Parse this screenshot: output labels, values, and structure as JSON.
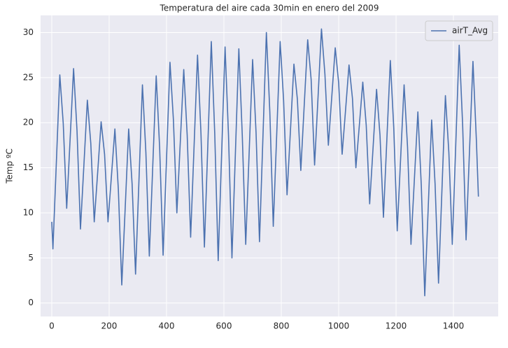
{
  "chart_data": {
    "type": "line",
    "title": "Temperatura del aire cada 30min en enero del 2009",
    "y_label": "Temp ºC",
    "x": [
      0,
      4,
      16,
      28,
      40,
      52,
      64,
      76,
      88,
      100,
      112,
      124,
      136,
      148,
      160,
      172,
      184,
      196,
      208,
      220,
      232,
      244,
      256,
      268,
      280,
      292,
      304,
      316,
      328,
      340,
      352,
      364,
      376,
      388,
      400,
      412,
      424,
      436,
      448,
      460,
      472,
      484,
      496,
      508,
      520,
      532,
      544,
      556,
      568,
      580,
      592,
      604,
      616,
      628,
      640,
      652,
      664,
      676,
      688,
      700,
      712,
      724,
      736,
      748,
      760,
      772,
      784,
      796,
      808,
      820,
      832,
      844,
      856,
      868,
      880,
      892,
      904,
      916,
      928,
      940,
      952,
      964,
      976,
      988,
      1000,
      1012,
      1024,
      1036,
      1048,
      1060,
      1072,
      1084,
      1096,
      1108,
      1120,
      1132,
      1144,
      1156,
      1168,
      1180,
      1192,
      1204,
      1216,
      1228,
      1240,
      1252,
      1264,
      1276,
      1288,
      1300,
      1312,
      1324,
      1336,
      1348,
      1360,
      1372,
      1384,
      1396,
      1408,
      1420,
      1432,
      1444,
      1456,
      1468,
      1480,
      1487
    ],
    "series": [
      {
        "name": "airT_Avg",
        "color": "#4c72b0",
        "values": [
          9,
          6,
          15.6,
          25.3,
          19.9,
          10.5,
          18.2,
          26,
          19.1,
          8.2,
          15.3,
          22.5,
          17.7,
          9,
          14.5,
          20.1,
          16.5,
          9,
          14.1,
          19.3,
          12.6,
          2,
          10.6,
          19.3,
          13.2,
          3.2,
          13.7,
          24.2,
          16.7,
          5.2,
          15.2,
          25.2,
          17.2,
          5.3,
          16,
          26.7,
          20.3,
          10,
          17.9,
          25.9,
          18.6,
          7.3,
          17.4,
          27.5,
          18.8,
          6.2,
          17.6,
          29,
          18.8,
          4.7,
          16.5,
          28.4,
          18.6,
          5,
          16.6,
          28.2,
          18.6,
          6.5,
          16.7,
          27,
          18.9,
          6.8,
          18.4,
          30,
          21.2,
          8.5,
          18.7,
          29,
          22.5,
          12,
          19.2,
          26.5,
          22.6,
          14.7,
          22,
          29.2,
          24.8,
          15.3,
          22.8,
          30.4,
          25.4,
          17.5,
          22.9,
          28.3,
          24.4,
          16.5,
          21.4,
          26.4,
          22.7,
          15,
          19.7,
          24.5,
          19.7,
          11,
          17.3,
          23.7,
          18.6,
          9.5,
          18.2,
          26.9,
          19.4,
          8,
          16.1,
          24.2,
          17.3,
          6.5,
          13.8,
          21.2,
          13,
          0.8,
          10.5,
          20.3,
          13.2,
          2.2,
          12.6,
          23,
          16.7,
          6.5,
          17.5,
          28.6,
          19.8,
          7,
          16.9,
          26.8,
          18,
          11.8
        ]
      }
    ],
    "xlim": [
      -39,
      1556
    ],
    "ylim": [
      -1.5,
      31.9
    ],
    "xticks": [
      0,
      200,
      400,
      600,
      800,
      1000,
      1200,
      1400
    ],
    "yticks": [
      0,
      5,
      10,
      15,
      20,
      25,
      30
    ],
    "grid": true,
    "legend": "upper right",
    "background": "#eaeaf2"
  }
}
